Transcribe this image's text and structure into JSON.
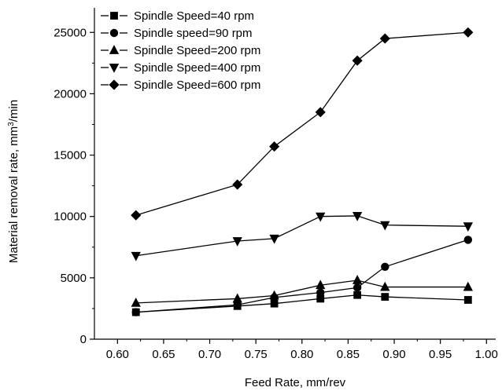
{
  "chart_data": {
    "type": "line",
    "title": "",
    "xlabel": "Feed Rate, mm/rev",
    "ylabel": {
      "prefix": "Material removal rate, mm",
      "superscript": "3",
      "suffix": "/min"
    },
    "xlim": [
      0.575,
      1.01
    ],
    "ylim": [
      0,
      27000
    ],
    "x_ticks": [
      "0.60",
      "0.65",
      "0.70",
      "0.75",
      "0.80",
      "0.85",
      "0.90",
      "0.95",
      "1.00"
    ],
    "y_ticks": [
      "0",
      "5000",
      "10000",
      "15000",
      "20000",
      "25000"
    ],
    "grid": false,
    "legend_position": "top-left",
    "series": [
      {
        "name": "Spindle Speed=40 rpm",
        "marker": "square",
        "x": [
          0.62,
          0.73,
          0.77,
          0.82,
          0.86,
          0.89,
          0.98
        ],
        "y": [
          2200,
          2700,
          2900,
          3300,
          3600,
          3450,
          3200
        ]
      },
      {
        "name": "Spindle speed=90 rpm",
        "marker": "circle",
        "x": [
          0.62,
          0.73,
          0.77,
          0.82,
          0.86,
          0.89,
          0.98
        ],
        "y": [
          2200,
          2800,
          3400,
          3800,
          4200,
          5900,
          8100
        ]
      },
      {
        "name": "Spindle Speed=200 rpm",
        "marker": "triangle-up",
        "x": [
          0.62,
          0.73,
          0.77,
          0.82,
          0.86,
          0.89,
          0.98
        ],
        "y": [
          2950,
          3300,
          3550,
          4400,
          4800,
          4250,
          4250
        ]
      },
      {
        "name": "Spindle Speed=400 rpm",
        "marker": "triangle-down",
        "x": [
          0.62,
          0.73,
          0.77,
          0.82,
          0.86,
          0.89,
          0.98
        ],
        "y": [
          6800,
          8000,
          8200,
          10000,
          10050,
          9300,
          9200
        ]
      },
      {
        "name": "Spindle Speed=600 rpm",
        "marker": "diamond",
        "x": [
          0.62,
          0.73,
          0.77,
          0.82,
          0.86,
          0.89,
          0.98
        ],
        "y": [
          10100,
          12600,
          15700,
          18500,
          22700,
          24500,
          25000
        ]
      }
    ]
  }
}
